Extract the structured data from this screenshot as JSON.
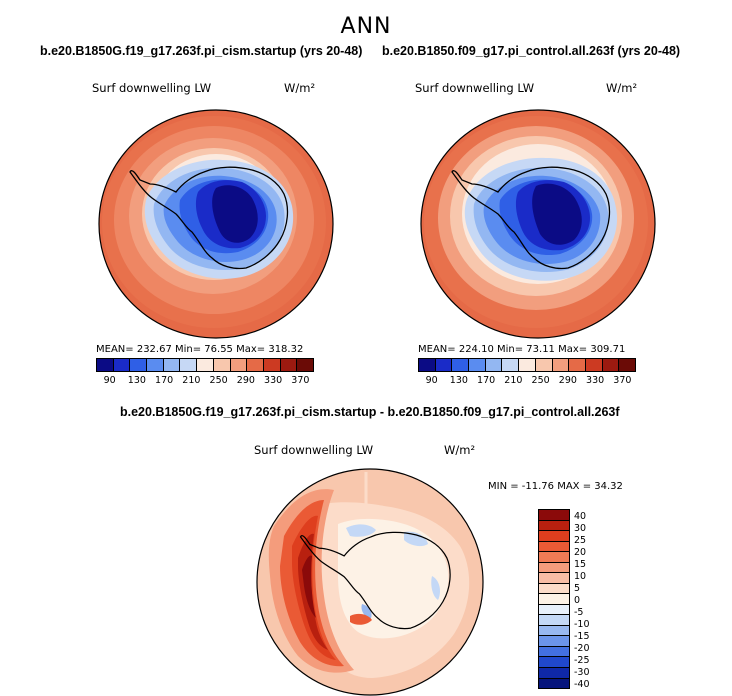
{
  "title": "ANN",
  "variable": "Surf downwelling LW",
  "units": "W/m²",
  "panels": {
    "left": {
      "case": "b.e20.B1850G.f19_g17.263f.pi_cism.startup (yrs 20-48)",
      "stats": "MEAN=  232.67    Min=   76.55    Max=  318.32"
    },
    "right": {
      "case": "b.e20.B1850.f09_g17.pi_control.all.263f (yrs 20-48)",
      "stats": "MEAN=  224.10    Min=   73.11    Max=  309.71"
    },
    "diff": {
      "case": "b.e20.B1850G.f19_g17.263f.pi_cism.startup - b.e20.B1850.f09_g17.pi_control.all.263f",
      "stats": "MIN =  -11.76  MAX =  34.32"
    }
  },
  "colorbar_main": {
    "colors": [
      "#0b0b85",
      "#1a2bc8",
      "#2f5fe6",
      "#5a8cf0",
      "#93b7f2",
      "#c6d8f5",
      "#fbeadf",
      "#f8c7ad",
      "#f29e7e",
      "#e56a47",
      "#cc3a22",
      "#9c1a10",
      "#6b0b06"
    ],
    "labels": [
      "90",
      "130",
      "170",
      "210",
      "250",
      "290",
      "330",
      "370"
    ]
  },
  "colorbar_diff": {
    "colors": [
      "#8b0a0a",
      "#b8200f",
      "#de3e1e",
      "#ea5a35",
      "#f07b55",
      "#f49c7c",
      "#f8bda5",
      "#fcdcc9",
      "#fdf2e6",
      "#e8f0fb",
      "#c4d8f6",
      "#98b8f0",
      "#6c95ea",
      "#4370e0",
      "#2048cc",
      "#0f28a8",
      "#06147c"
    ],
    "labels": [
      "40",
      "30",
      "25",
      "20",
      "15",
      "10",
      "5",
      "0",
      "-5",
      "-10",
      "-15",
      "-20",
      "-25",
      "-30",
      "-40"
    ]
  }
}
